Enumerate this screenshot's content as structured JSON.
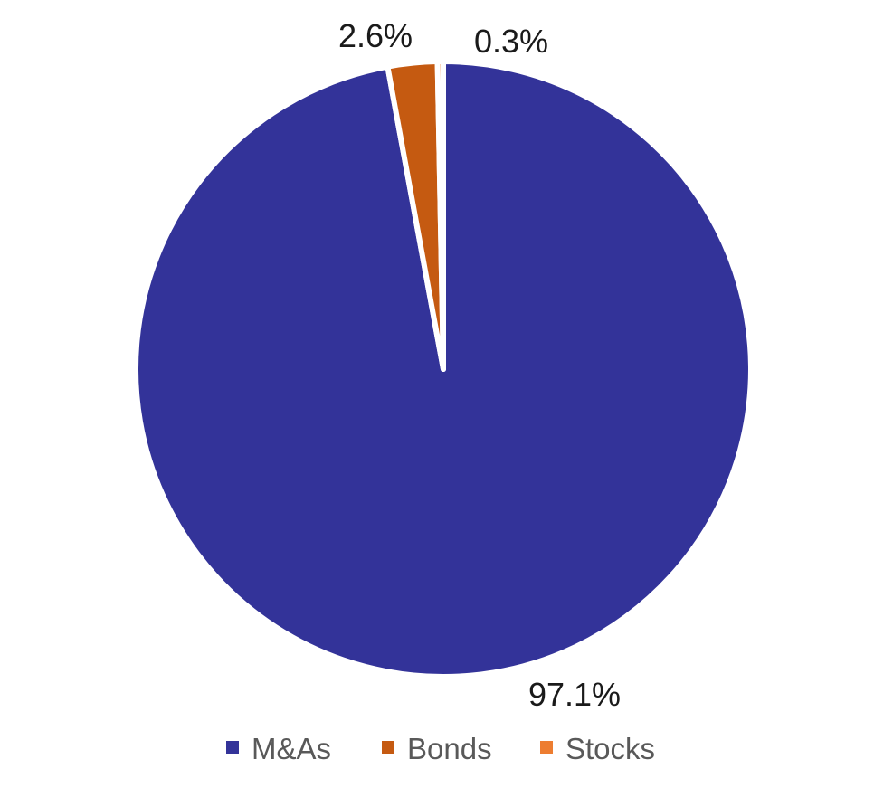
{
  "chart_data": {
    "type": "pie",
    "title": "",
    "series": [
      {
        "slices": [
          {
            "name": "M&As",
            "value": 97.1,
            "label": "97.1%",
            "color": "#333399"
          },
          {
            "name": "Bonds",
            "value": 2.6,
            "label": "2.6%",
            "color": "#C55A11"
          },
          {
            "name": "Stocks",
            "value": 0.3,
            "label": "0.3%",
            "color": "#ED7D31"
          }
        ]
      }
    ],
    "legend": {
      "position": "bottom"
    },
    "slice_border_color": "#FFFFFF"
  }
}
